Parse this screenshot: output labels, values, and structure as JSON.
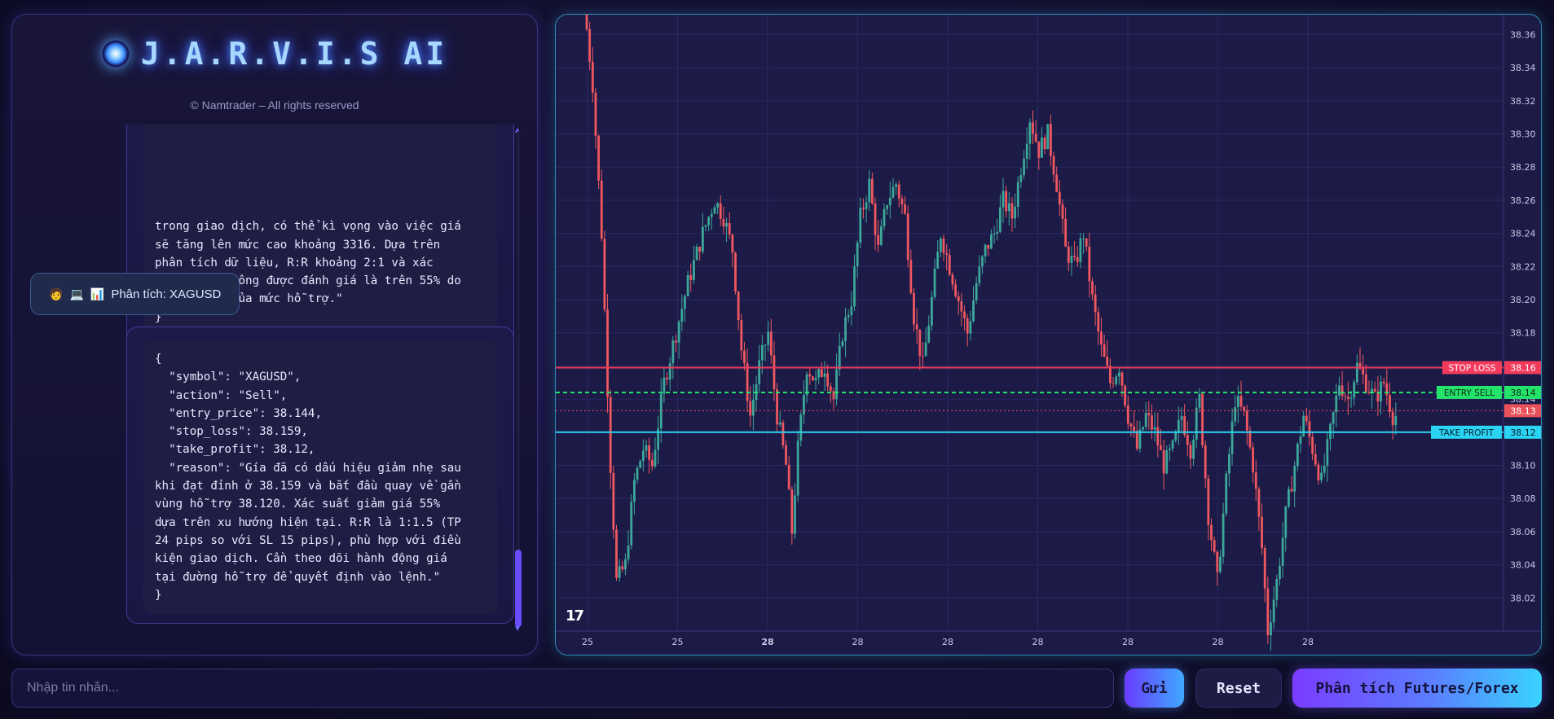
{
  "brand": {
    "title": "J.A.R.V.I.S AI",
    "copyright": "© Namtrader – All rights reserved"
  },
  "messages": [
    {
      "role": "bot",
      "text": "trong giao dịch, có thể kì vọng vào việc giá\nsẽ tăng lên mức cao khoảng 3316. Dựa trên\nphân tích dữ liệu, R:R khoảng 2:1 và xác\nsuất thành công được đánh giá là trên 55% do\nsự ổn định của mức hỗ trợ.\"\n}"
    },
    {
      "role": "user",
      "emojis": [
        "🧑",
        "💻",
        "📊"
      ],
      "text": "Phân tích: XAGUSD"
    },
    {
      "role": "bot",
      "text": "{\n  \"symbol\": \"XAGUSD\",\n  \"action\": \"Sell\",\n  \"entry_price\": 38.144,\n  \"stop_loss\": 38.159,\n  \"take_profit\": 38.12,\n  \"reason\": \"Gía đã có dấu hiệu giảm nhẹ sau\nkhi đạt đỉnh ở 38.159 và bắt đầu quay về gần\nvùng hỗ trợ 38.120. Xác suất giảm giá 55%\ndựa trên xu hướng hiện tại. R:R là 1:1.5 (TP\n24 pips so với SL 15 pips), phù hợp với điều\nkiện giao dịch. Cần theo dõi hành động giá\ntại đường hỗ trợ để quyết định vào lệnh.\"\n}"
    }
  ],
  "input": {
    "placeholder": "Nhập tin nhắn...",
    "value": ""
  },
  "buttons": {
    "send": "Gửi",
    "reset": "Reset",
    "analyze": "Phân tích Futures/Forex"
  },
  "chart_data": {
    "type": "candlestick",
    "symbol": "XAGUSD",
    "ylim": [
      38.0,
      38.372
    ],
    "y_ticks": [
      38.02,
      38.04,
      38.06,
      38.08,
      38.1,
      38.12,
      38.14,
      38.16,
      38.18,
      38.2,
      38.22,
      38.24,
      38.26,
      38.28,
      38.3,
      38.32,
      38.34,
      38.36
    ],
    "x_tick_labels": [
      "25",
      "25",
      "28",
      "28",
      "28",
      "28",
      "28",
      "28",
      "28"
    ],
    "x_tick_bold": [
      false,
      false,
      true,
      false,
      false,
      false,
      false,
      false,
      false
    ],
    "price_path": [
      [
        0,
        38.38
      ],
      [
        3,
        38.33
      ],
      [
        6,
        38.24
      ],
      [
        9,
        38.1
      ],
      [
        11,
        38.03
      ],
      [
        14,
        38.04
      ],
      [
        17,
        38.09
      ],
      [
        20,
        38.11
      ],
      [
        23,
        38.1
      ],
      [
        27,
        38.15
      ],
      [
        31,
        38.18
      ],
      [
        35,
        38.21
      ],
      [
        40,
        38.24
      ],
      [
        44,
        38.26
      ],
      [
        47,
        38.25
      ],
      [
        50,
        38.23
      ],
      [
        53,
        38.17
      ],
      [
        56,
        38.13
      ],
      [
        59,
        38.16
      ],
      [
        62,
        38.18
      ],
      [
        65,
        38.13
      ],
      [
        68,
        38.1
      ],
      [
        70,
        38.06
      ],
      [
        72,
        38.11
      ],
      [
        75,
        38.16
      ],
      [
        78,
        38.15
      ],
      [
        81,
        38.16
      ],
      [
        84,
        38.14
      ],
      [
        87,
        38.18
      ],
      [
        90,
        38.2
      ],
      [
        93,
        38.25
      ],
      [
        96,
        38.27
      ],
      [
        99,
        38.23
      ],
      [
        102,
        38.26
      ],
      [
        105,
        38.27
      ],
      [
        108,
        38.25
      ],
      [
        111,
        38.19
      ],
      [
        114,
        38.16
      ],
      [
        117,
        38.2
      ],
      [
        120,
        38.24
      ],
      [
        123,
        38.22
      ],
      [
        126,
        38.2
      ],
      [
        129,
        38.18
      ],
      [
        132,
        38.21
      ],
      [
        135,
        38.23
      ],
      [
        138,
        38.24
      ],
      [
        141,
        38.26
      ],
      [
        144,
        38.25
      ],
      [
        147,
        38.28
      ],
      [
        150,
        38.31
      ],
      [
        153,
        38.29
      ],
      [
        156,
        38.3
      ],
      [
        159,
        38.27
      ],
      [
        162,
        38.23
      ],
      [
        165,
        38.22
      ],
      [
        168,
        38.24
      ],
      [
        171,
        38.2
      ],
      [
        174,
        38.17
      ],
      [
        177,
        38.15
      ],
      [
        180,
        38.16
      ],
      [
        183,
        38.13
      ],
      [
        186,
        38.11
      ],
      [
        189,
        38.13
      ],
      [
        192,
        38.12
      ],
      [
        195,
        38.1
      ],
      [
        198,
        38.11
      ],
      [
        201,
        38.13
      ],
      [
        204,
        38.11
      ],
      [
        207,
        38.14
      ],
      [
        210,
        38.07
      ],
      [
        213,
        38.03
      ],
      [
        216,
        38.09
      ],
      [
        219,
        38.14
      ],
      [
        222,
        38.13
      ],
      [
        225,
        38.1
      ],
      [
        228,
        38.05
      ],
      [
        230,
        38.0
      ],
      [
        233,
        38.03
      ],
      [
        236,
        38.07
      ],
      [
        239,
        38.1
      ],
      [
        242,
        38.13
      ],
      [
        245,
        38.11
      ],
      [
        248,
        38.09
      ],
      [
        251,
        38.12
      ],
      [
        254,
        38.15
      ],
      [
        257,
        38.14
      ],
      [
        260,
        38.16
      ],
      [
        263,
        38.15
      ],
      [
        266,
        38.14
      ],
      [
        269,
        38.15
      ],
      [
        272,
        38.13
      ]
    ],
    "levels": [
      {
        "name": "STOP LOSS",
        "value": 38.159,
        "price_label": "38.16",
        "color": "#f23b5c",
        "text_color": "#ffffff",
        "style": "solid"
      },
      {
        "name": "ENTRY SELL",
        "value": 38.144,
        "price_label": "38.14",
        "color": "#23e36b",
        "text_color": "#0b2a14",
        "style": "dashed"
      },
      {
        "name": "",
        "value": 38.133,
        "price_label": "38.13",
        "color": "#e8505b",
        "text_color": "#ffffff",
        "style": "dotted"
      },
      {
        "name": "TAKE PROFIT",
        "value": 38.12,
        "price_label": "38.12",
        "color": "#2ad4f2",
        "text_color": "#0a2030",
        "style": "solid"
      }
    ],
    "colors": {
      "up": "#3ca89a",
      "down": "#f0575f",
      "background": "#1c1a47",
      "grid": "#2b2960",
      "axis_text": "#c9c8e6"
    }
  }
}
